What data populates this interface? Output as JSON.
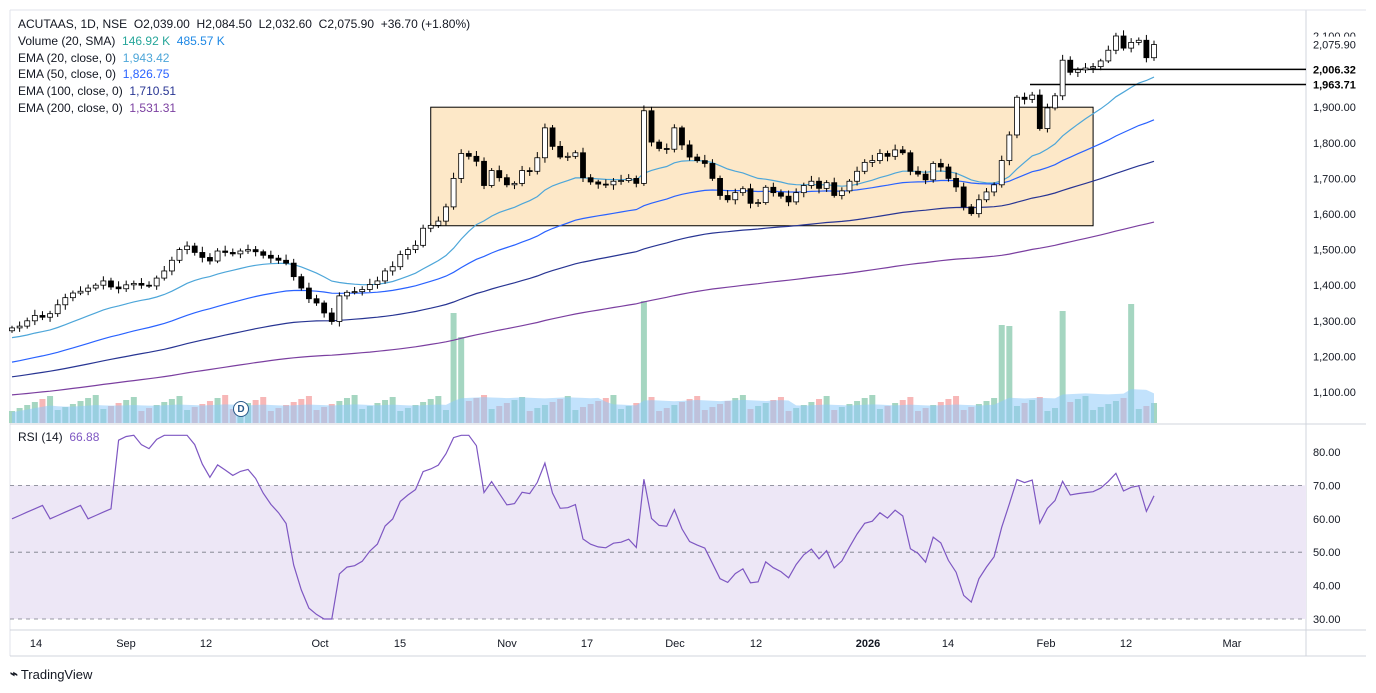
{
  "header": {
    "symbol": "ACUTAAS, 1D, NSE",
    "open": "O2,039.00",
    "high": "H2,084.50",
    "low": "L2,032.60",
    "close": "C2,075.90",
    "change": "+36.70 (+1.80%)"
  },
  "indicators": [
    {
      "label": "Volume (20, SMA)",
      "values": [
        "146.92 K",
        "485.57 K"
      ],
      "color": "#26a69a"
    },
    {
      "label": "EMA (20, close, 0)",
      "values": [
        "1,943.42"
      ],
      "color": "#4da6d9"
    },
    {
      "label": "EMA (50, close, 0)",
      "values": [
        "1,826.75"
      ],
      "color": "#2962ff"
    },
    {
      "label": "EMA (100, close, 0)",
      "values": [
        "1,710.51"
      ],
      "color": "#283593"
    },
    {
      "label": "EMA (200, close, 0)",
      "values": [
        "1,531.31"
      ],
      "color": "#7b3fa0"
    }
  ],
  "rsi_legend": {
    "label": "RSI (14)",
    "value": "66.88",
    "color": "#7e57c2"
  },
  "dividend_marker": "D",
  "footer": {
    "brand": "TradingView"
  },
  "colors": {
    "up": "#ffffff",
    "down": "#000000",
    "vol_up": "#a5d6c1",
    "vol_down": "#f7b7b7",
    "vol_sma": "#90caf9",
    "box_fill": "#fde8c8",
    "rsi_band": "#ede7f6",
    "rsi_line": "#7e57c2"
  },
  "chart_data": [
    {
      "type": "candlestick",
      "title": "ACUTAAS, 1D, NSE",
      "x_ticks": [
        "14",
        "Sep",
        "12",
        "Oct",
        "15",
        "Nov",
        "17",
        "Dec",
        "12",
        "2026",
        "14",
        "Feb",
        "12",
        "Mar"
      ],
      "y_ticks": [
        "1,100.00",
        "1,200.00",
        "1,300.00",
        "1,400.00",
        "1,500.00",
        "1,600.00",
        "1,700.00",
        "1,800.00",
        "1,900.00",
        "2,100.00"
      ],
      "ylim": [
        1000,
        2110
      ],
      "price_labels": {
        "last": "2,075.90",
        "level_1": "2,006.32",
        "level_2": "1,963.71"
      },
      "close": [
        1280,
        1285,
        1300,
        1315,
        1310,
        1320,
        1345,
        1365,
        1378,
        1383,
        1392,
        1400,
        1412,
        1395,
        1390,
        1401,
        1405,
        1400,
        1398,
        1420,
        1440,
        1470,
        1500,
        1510,
        1492,
        1478,
        1468,
        1496,
        1492,
        1488,
        1496,
        1500,
        1494,
        1484,
        1476,
        1470,
        1462,
        1424,
        1392,
        1362,
        1350,
        1322,
        1298,
        1370,
        1380,
        1382,
        1388,
        1402,
        1412,
        1440,
        1452,
        1486,
        1500,
        1512,
        1560,
        1568,
        1580,
        1620,
        1700,
        1770,
        1762,
        1748,
        1680,
        1722,
        1702,
        1682,
        1686,
        1722,
        1720,
        1758,
        1842,
        1790,
        1760,
        1762,
        1772,
        1702,
        1690,
        1684,
        1682,
        1692,
        1694,
        1700,
        1686,
        1890,
        1802,
        1784,
        1782,
        1842,
        1794,
        1760,
        1750,
        1742,
        1700,
        1652,
        1640,
        1660,
        1671,
        1630,
        1632,
        1675,
        1660,
        1650,
        1634,
        1660,
        1680,
        1692,
        1672,
        1688,
        1652,
        1665,
        1692,
        1720,
        1745,
        1750,
        1770,
        1762,
        1780,
        1772,
        1720,
        1712,
        1696,
        1742,
        1732,
        1700,
        1676,
        1620,
        1601,
        1640,
        1662,
        1682,
        1750,
        1822,
        1928,
        1922,
        1934,
        1840,
        1898,
        1932,
        2032,
        1998,
        2005,
        2010,
        2014,
        2030,
        2060,
        2100,
        2066,
        2082,
        2088,
        2039,
        2076
      ],
      "ema_20_end": 1943.42,
      "ema_50_end": 1826.75,
      "ema_100_end": 1710.51,
      "ema_200_end": 1531.31
    },
    {
      "type": "line",
      "title": "RSI (14)",
      "y_ticks": [
        "30.00",
        "40.00",
        "50.00",
        "60.00",
        "70.00",
        "80.00"
      ],
      "ylim": [
        28,
        86
      ],
      "bands": [
        30,
        50,
        70
      ],
      "last": 66.88
    }
  ]
}
